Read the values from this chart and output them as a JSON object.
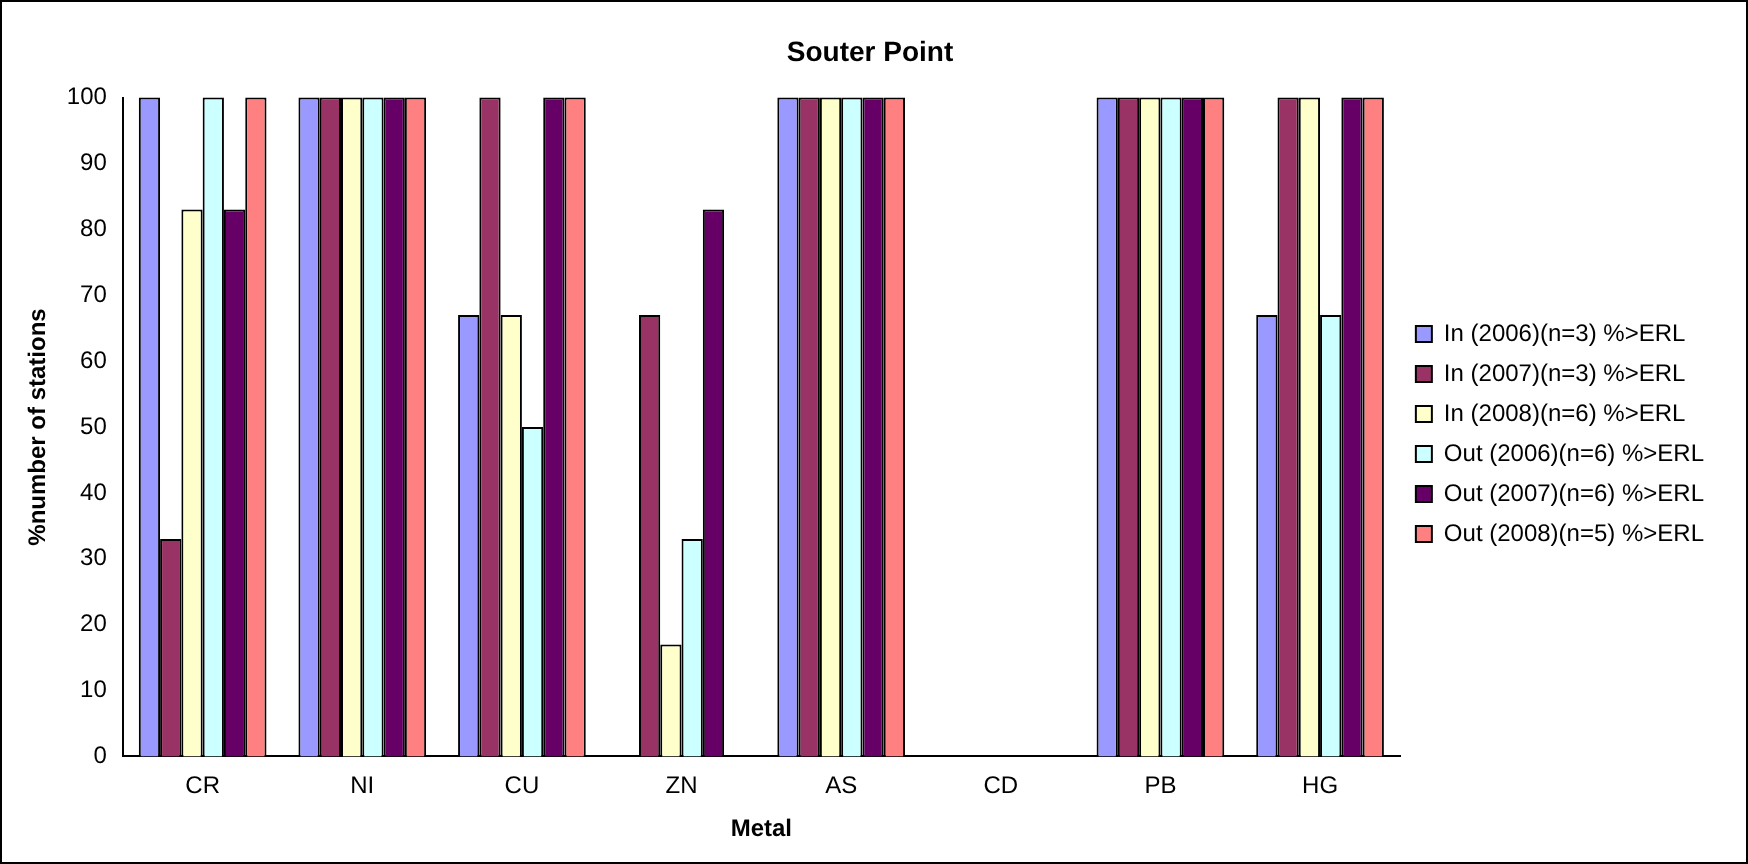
{
  "chart_data": {
    "type": "bar",
    "title": "Souter Point",
    "xlabel": "Metal",
    "ylabel": "%number of stations",
    "categories": [
      "CR",
      "NI",
      "CU",
      "ZN",
      "AS",
      "CD",
      "PB",
      "HG"
    ],
    "series": [
      {
        "name": "In (2006)(n=3) %>ERL",
        "color": "#9999ff",
        "values": [
          100,
          100,
          67,
          0,
          100,
          0,
          100,
          67
        ]
      },
      {
        "name": "In (2007)(n=3) %>ERL",
        "color": "#993366",
        "values": [
          33,
          100,
          100,
          67,
          100,
          0,
          100,
          100
        ]
      },
      {
        "name": "In (2008)(n=6) %>ERL",
        "color": "#ffffcc",
        "values": [
          83,
          100,
          67,
          17,
          100,
          0,
          100,
          100
        ]
      },
      {
        "name": "Out (2006)(n=6) %>ERL",
        "color": "#ccffff",
        "values": [
          100,
          100,
          50,
          33,
          100,
          0,
          100,
          67
        ]
      },
      {
        "name": "Out (2007)(n=6) %>ERL",
        "color": "#660066",
        "values": [
          83,
          100,
          100,
          83,
          100,
          0,
          100,
          100
        ]
      },
      {
        "name": "Out (2008)(n=5) %>ERL",
        "color": "#ff8080",
        "values": [
          100,
          100,
          100,
          0,
          100,
          0,
          100,
          100
        ]
      }
    ],
    "ylim": [
      0,
      100
    ],
    "yticks": [
      0,
      10,
      20,
      30,
      40,
      50,
      60,
      70,
      80,
      90,
      100
    ],
    "grid": false,
    "legend": "right"
  }
}
